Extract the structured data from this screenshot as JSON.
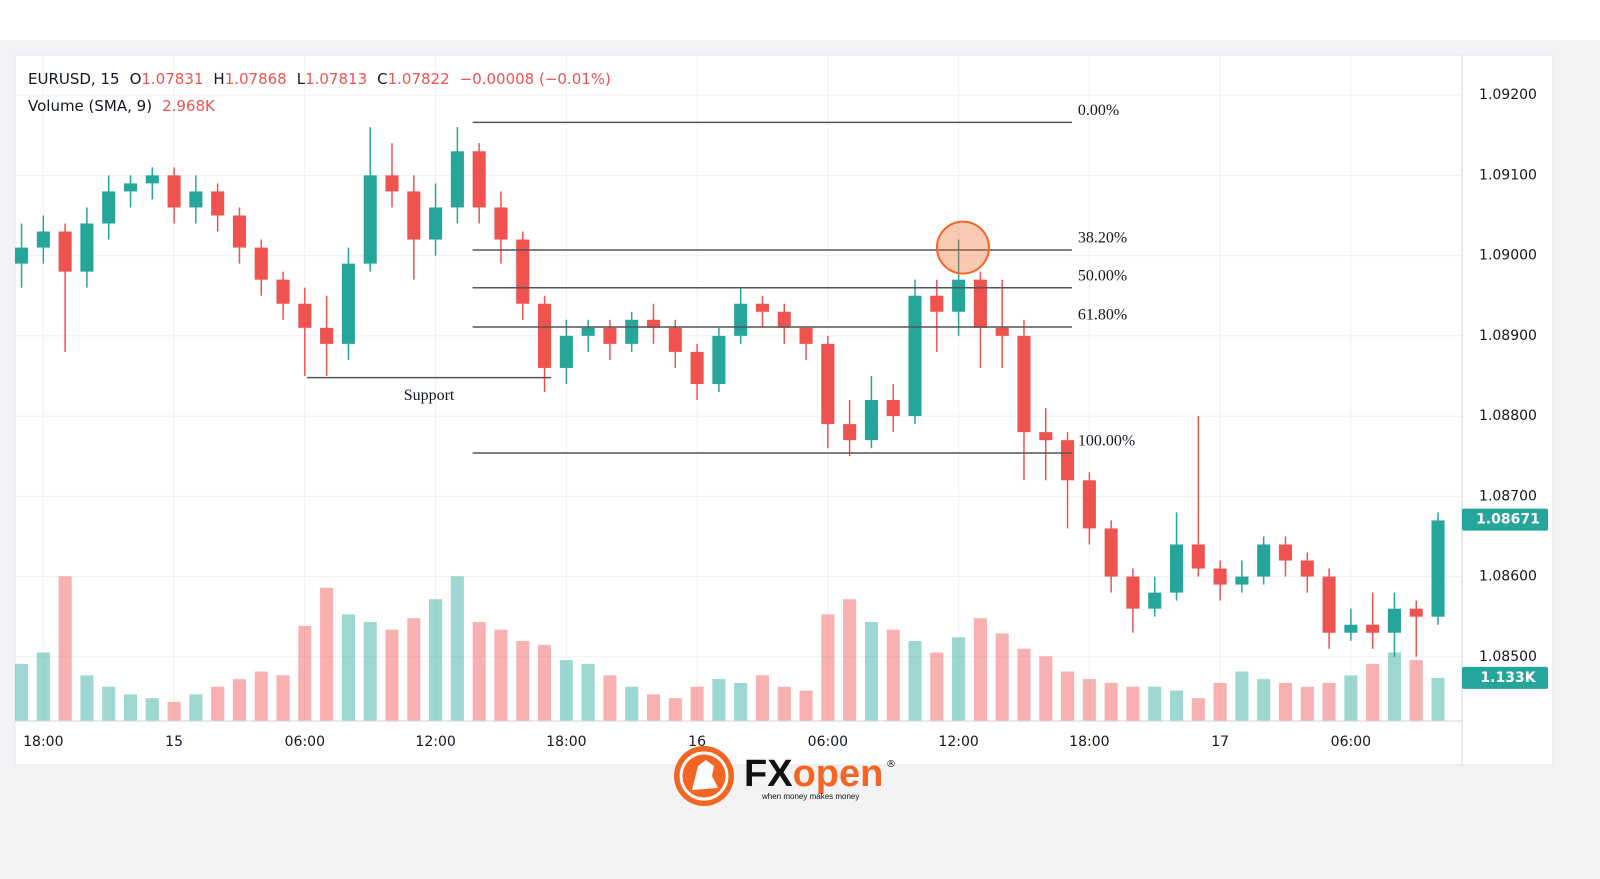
{
  "header": {
    "symbol": "EURUSD, 15",
    "o": "O",
    "o_val": "1.07831",
    "h": "H",
    "h_val": "1.07868",
    "l": "L",
    "l_val": "1.07813",
    "c": "C",
    "c_val": "1.07822",
    "change": "−0.00008 (−0.01%)",
    "volume": "Volume (SMA, 9)",
    "volume_val": "2.968K"
  },
  "logo": {
    "fx": "FX",
    "open": "open",
    "registered": "®",
    "tagline": "when money makes money"
  },
  "chart_data": {
    "type": "candlestick",
    "x": [
      -7,
      -6,
      -5,
      -4,
      -3,
      -2,
      -1,
      0,
      1,
      2,
      3,
      4,
      5,
      6,
      7,
      8,
      9,
      10,
      11,
      12,
      13,
      14,
      15,
      16,
      17,
      18,
      19,
      20,
      21,
      22,
      23,
      24,
      25,
      26,
      27,
      28,
      29,
      30,
      31,
      32,
      33,
      34,
      35,
      36,
      37,
      38,
      39,
      40,
      41,
      42,
      43,
      44,
      45,
      46,
      47,
      48,
      49,
      50,
      51,
      52,
      53,
      54,
      55,
      56,
      57,
      58
    ],
    "open": [
      1.0899,
      1.0901,
      1.0903,
      1.0898,
      1.0904,
      1.0908,
      1.0909,
      1.091,
      1.0906,
      1.0908,
      1.0905,
      1.0901,
      1.0897,
      1.0894,
      1.0891,
      1.0889,
      1.0899,
      1.091,
      1.0908,
      1.0902,
      1.0906,
      1.0913,
      1.0906,
      1.0902,
      1.0894,
      1.0886,
      1.089,
      1.0891,
      1.0889,
      1.0892,
      1.0891,
      1.0888,
      1.0884,
      1.089,
      1.0894,
      1.0893,
      1.0891,
      1.0889,
      1.0879,
      1.0877,
      1.0882,
      1.088,
      1.0895,
      1.0893,
      1.0897,
      1.0891,
      1.089,
      1.0878,
      1.0877,
      1.0872,
      1.0866,
      1.086,
      1.0856,
      1.0858,
      1.0864,
      1.0861,
      1.0859,
      1.086,
      1.0864,
      1.0862,
      1.086,
      1.0853,
      1.0854,
      1.0853,
      1.0856,
      1.0855
    ],
    "high": [
      1.0904,
      1.0905,
      1.0904,
      1.0906,
      1.091,
      1.091,
      1.0911,
      1.0911,
      1.091,
      1.0909,
      1.0906,
      1.0902,
      1.0898,
      1.0896,
      1.0895,
      1.0901,
      1.0916,
      1.0914,
      1.091,
      1.0909,
      1.0916,
      1.0914,
      1.0908,
      1.0903,
      1.0895,
      1.0892,
      1.0892,
      1.0892,
      1.0893,
      1.0894,
      1.0892,
      1.0889,
      1.0891,
      1.0896,
      1.0895,
      1.0894,
      1.0891,
      1.089,
      1.0882,
      1.0885,
      1.0884,
      1.0897,
      1.0897,
      1.0902,
      1.0898,
      1.0897,
      1.0892,
      1.0881,
      1.0878,
      1.0873,
      1.0867,
      1.0861,
      1.086,
      1.0868,
      1.088,
      1.0862,
      1.0862,
      1.0865,
      1.0865,
      1.0863,
      1.0861,
      1.0856,
      1.0858,
      1.0858,
      1.0857,
      1.0868
    ],
    "low": [
      1.0896,
      1.0899,
      1.0888,
      1.0896,
      1.0902,
      1.0906,
      1.0907,
      1.0904,
      1.0904,
      1.0903,
      1.0899,
      1.0895,
      1.0892,
      1.0885,
      1.0885,
      1.0887,
      1.0898,
      1.0906,
      1.0897,
      1.09,
      1.0904,
      1.0904,
      1.0899,
      1.0892,
      1.0883,
      1.0884,
      1.0888,
      1.0887,
      1.0888,
      1.0889,
      1.0886,
      1.0882,
      1.0883,
      1.0889,
      1.0891,
      1.0889,
      1.0887,
      1.0876,
      1.0875,
      1.0876,
      1.0878,
      1.0879,
      1.0888,
      1.089,
      1.0886,
      1.0886,
      1.0872,
      1.0872,
      1.0866,
      1.0864,
      1.0858,
      1.0853,
      1.0855,
      1.0857,
      1.086,
      1.0857,
      1.0858,
      1.0859,
      1.086,
      1.0858,
      1.0851,
      1.0852,
      1.0851,
      1.085,
      1.085,
      1.0854
    ],
    "close": [
      1.0901,
      1.0903,
      1.0898,
      1.0904,
      1.0908,
      1.0909,
      1.091,
      1.0906,
      1.0908,
      1.0905,
      1.0901,
      1.0897,
      1.0894,
      1.0891,
      1.0889,
      1.0899,
      1.091,
      1.0908,
      1.0902,
      1.0906,
      1.0913,
      1.0906,
      1.0902,
      1.0894,
      1.0886,
      1.089,
      1.0891,
      1.0889,
      1.0892,
      1.0891,
      1.0888,
      1.0884,
      1.089,
      1.0894,
      1.0893,
      1.0891,
      1.0889,
      1.0879,
      1.0877,
      1.0882,
      1.088,
      1.0895,
      1.0893,
      1.0897,
      1.0891,
      1.089,
      1.0878,
      1.0877,
      1.0872,
      1.0866,
      1.086,
      1.0856,
      1.0858,
      1.0864,
      1.0861,
      1.0859,
      1.086,
      1.0864,
      1.0862,
      1.086,
      1.0853,
      1.0854,
      1.0853,
      1.0856,
      1.0855,
      1.0867
    ],
    "volume": [
      1500,
      1800,
      3800,
      1200,
      900,
      700,
      600,
      500,
      700,
      900,
      1100,
      1300,
      1200,
      2500,
      3500,
      2800,
      2600,
      2400,
      2700,
      3200,
      3800,
      2600,
      2400,
      2100,
      2000,
      1600,
      1500,
      1200,
      900,
      700,
      600,
      900,
      1100,
      1000,
      1200,
      900,
      800,
      2800,
      3200,
      2600,
      2400,
      2100,
      1800,
      2200,
      2700,
      2300,
      1900,
      1700,
      1300,
      1100,
      1000,
      900,
      900,
      800,
      600,
      1000,
      1300,
      1100,
      1000,
      900,
      1000,
      1200,
      1500,
      1800,
      1600,
      1133
    ],
    "up_color": "#26a69a",
    "down_color": "#ef5350",
    "xlim": [
      -7.3,
      59.1
    ],
    "xticks": [
      {
        "value": -6,
        "label": "18:00"
      },
      {
        "value": 0,
        "label": "15"
      },
      {
        "value": 6,
        "label": "06:00"
      },
      {
        "value": 12,
        "label": "12:00"
      },
      {
        "value": 18,
        "label": "18:00"
      },
      {
        "value": 24,
        "label": "16"
      },
      {
        "value": 30,
        "label": "06:00"
      },
      {
        "value": 36,
        "label": "12:00"
      },
      {
        "value": 42,
        "label": "18:00"
      },
      {
        "value": 48,
        "label": "17"
      },
      {
        "value": 54,
        "label": "06:00"
      }
    ],
    "ylim": [
      1.0842,
      1.0925
    ],
    "yticks": [
      {
        "value": 1.092,
        "label": "1.09200"
      },
      {
        "value": 1.091,
        "label": "1.09100"
      },
      {
        "value": 1.09,
        "label": "1.09000"
      },
      {
        "value": 1.089,
        "label": "1.08900"
      },
      {
        "value": 1.088,
        "label": "1.08800"
      },
      {
        "value": 1.087,
        "label": "1.08700"
      },
      {
        "value": 1.086,
        "label": "1.08600"
      },
      {
        "value": 1.085,
        "label": "1.08500"
      }
    ],
    "vlim": [
      0,
      17500
    ],
    "grid": true,
    "last_price": 1.08671,
    "last_volume": {
      "value": 1133,
      "label": "1.133K"
    },
    "fib_x_range": [
      13.7,
      41.2
    ],
    "fib_levels": [
      {
        "label": "0.00%",
        "price": 1.09166
      },
      {
        "label": "38.20%",
        "price": 1.09007
      },
      {
        "label": "50.00%",
        "price": 1.0896
      },
      {
        "label": "61.80%",
        "price": 1.08911
      },
      {
        "label": "100.00%",
        "price": 1.08754
      }
    ],
    "support": {
      "label": "Support",
      "price": 1.08848,
      "x_range": [
        6.1,
        17.3
      ]
    },
    "highlight": {
      "x": 36.2,
      "price": 1.0901
    }
  }
}
